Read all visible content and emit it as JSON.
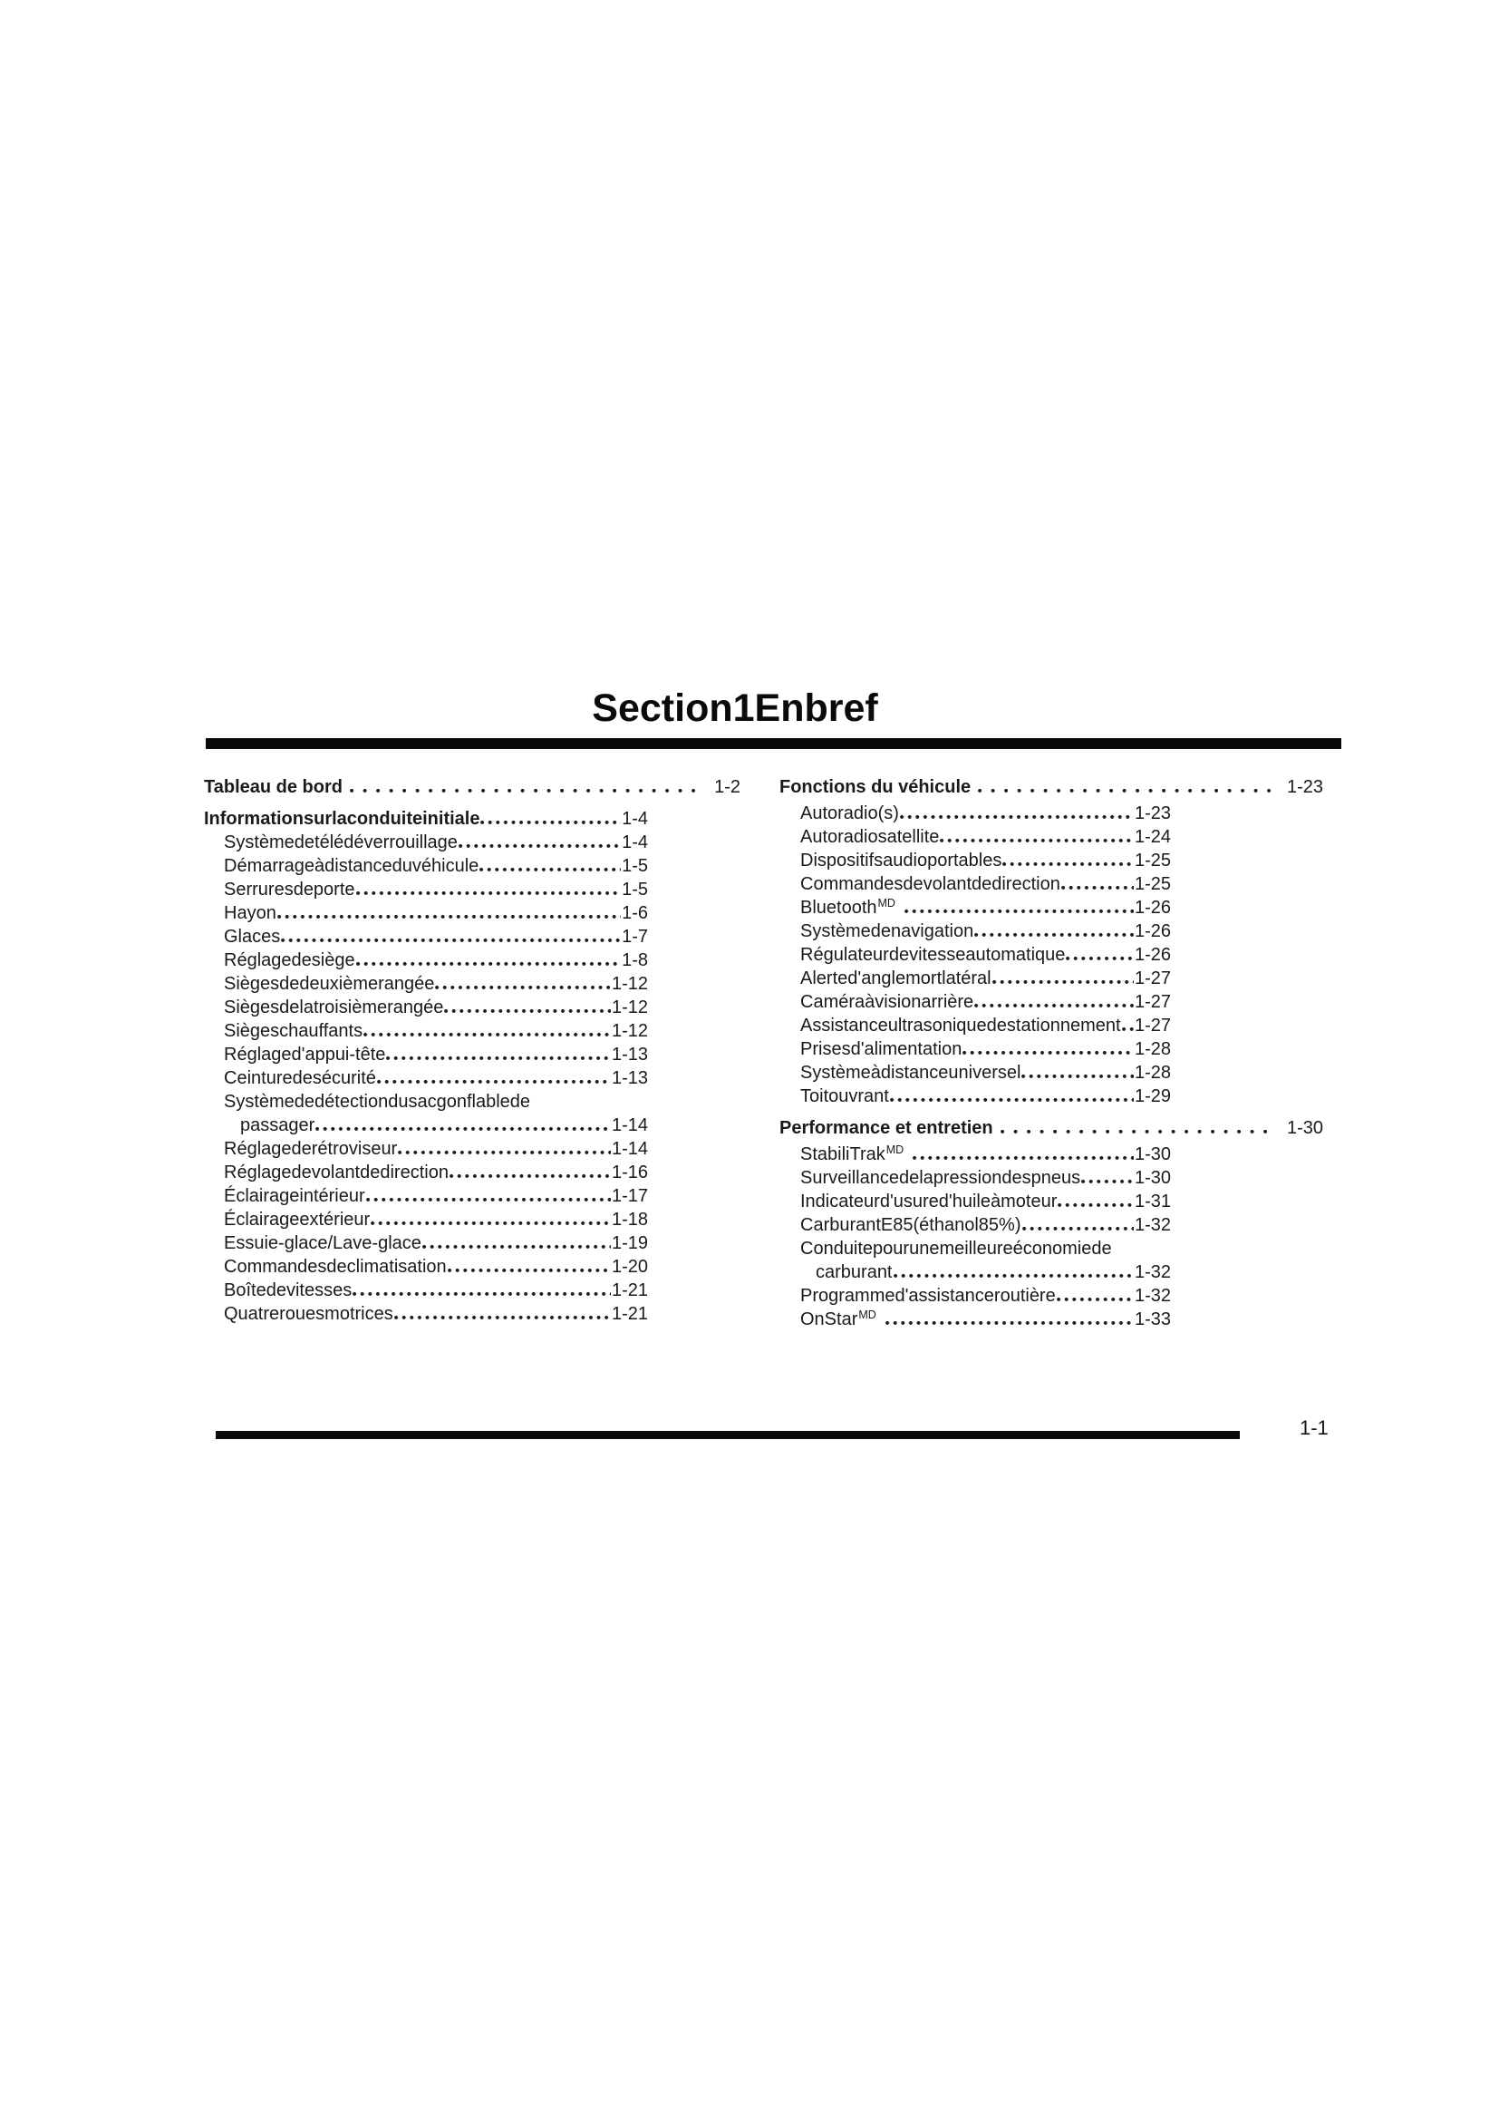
{
  "page_title": "Section1Enbref",
  "page_number": "1-1",
  "columns": [
    {
      "sections": [
        {
          "header": {
            "label": "Tableau de bord",
            "page": "1-2",
            "level": 1
          },
          "items": []
        },
        {
          "header": {
            "label": "Informationsurlaconduiteinitiale",
            "page": "1-4",
            "level": 2
          },
          "items": [
            {
              "label": "Systèmedetélédéverrouillage",
              "page": "1-4"
            },
            {
              "label": "Démarrageàdistanceduvéhicule",
              "page": "1-5"
            },
            {
              "label": "Serruresdeporte",
              "page": "1-5"
            },
            {
              "label": "Hayon",
              "page": "1-6"
            },
            {
              "label": "Glaces",
              "page": "1-7"
            },
            {
              "label": "Réglagedesiège",
              "page": "1-8"
            },
            {
              "label": "Siègesdedeuxièmerangée",
              "page": "1-12"
            },
            {
              "label": "Siègesdelatroisièmerangée",
              "page": "1-12"
            },
            {
              "label": "Siègeschauffants",
              "page": "1-12"
            },
            {
              "label": "Réglaged'appui-tête",
              "page": "1-13"
            },
            {
              "label": "Ceinturedesécurité",
              "page": "1-13"
            },
            {
              "label": "Systèmededétectiondusacgonflablede",
              "page": ""
            },
            {
              "label": "passager",
              "page": "1-14",
              "continuation": true
            },
            {
              "label": "Réglagederétroviseur",
              "page": "1-14"
            },
            {
              "label": "Réglagedevolantdedirection",
              "page": "1-16"
            },
            {
              "label": "Éclairageintérieur",
              "page": "1-17"
            },
            {
              "label": "Éclairageextérieur",
              "page": "1-18"
            },
            {
              "label": "Essuie-glace/Lave-glace",
              "page": "1-19"
            },
            {
              "label": "Commandesdeclimatisation",
              "page": "1-20"
            },
            {
              "label": "Boîtedevitesses",
              "page": "1-21"
            },
            {
              "label": "Quatrerouesmotrices",
              "page": "1-21"
            }
          ]
        }
      ]
    },
    {
      "sections": [
        {
          "header": {
            "label": "Fonctions du véhicule",
            "page": "1-23",
            "level": 1
          },
          "items": [
            {
              "label": "Autoradio(s)",
              "page": "1-23"
            },
            {
              "label": "Autoradiosatellite",
              "page": "1-24"
            },
            {
              "label": "Dispositifsaudioportables",
              "page": "1-25"
            },
            {
              "label": "Commandesdevolantdedirection",
              "page": "1-25"
            },
            {
              "label": "Bluetooth",
              "sup": "MD",
              "page": "1-26"
            },
            {
              "label": "Systèmedenavigation",
              "page": "1-26"
            },
            {
              "label": "Régulateurdevitesseautomatique",
              "page": "1-26"
            },
            {
              "label": "Alerted'anglemortlatéral",
              "page": "1-27"
            },
            {
              "label": "Caméraàvisionarrière",
              "page": "1-27"
            },
            {
              "label": "Assistanceultrasoniquedestationnement",
              "page": "1-27"
            },
            {
              "label": "Prisesd'alimentation",
              "page": "1-28"
            },
            {
              "label": "Systèmeàdistanceuniversel",
              "page": "1-28"
            },
            {
              "label": "Toitouvrant",
              "page": "1-29"
            }
          ]
        },
        {
          "header": {
            "label": "Performance et entretien",
            "page": "1-30",
            "level": 1
          },
          "items": [
            {
              "label": "StabiliTrak",
              "sup": "MD",
              "page": "1-30"
            },
            {
              "label": "Surveillancedelapressiondespneus",
              "page": "1-30"
            },
            {
              "label": "Indicateurd'usured'huileàmoteur",
              "page": "1-31"
            },
            {
              "label": "CarburantE85(éthanol85%)",
              "page": "1-32"
            },
            {
              "label": "Conduitepourunemeilleureéconomiede",
              "page": ""
            },
            {
              "label": "carburant",
              "page": "1-32",
              "continuation": true
            },
            {
              "label": "Programmed'assistanceroutière",
              "page": "1-32"
            },
            {
              "label": "OnStar",
              "sup": "MD",
              "page": "1-33"
            }
          ]
        }
      ]
    }
  ]
}
